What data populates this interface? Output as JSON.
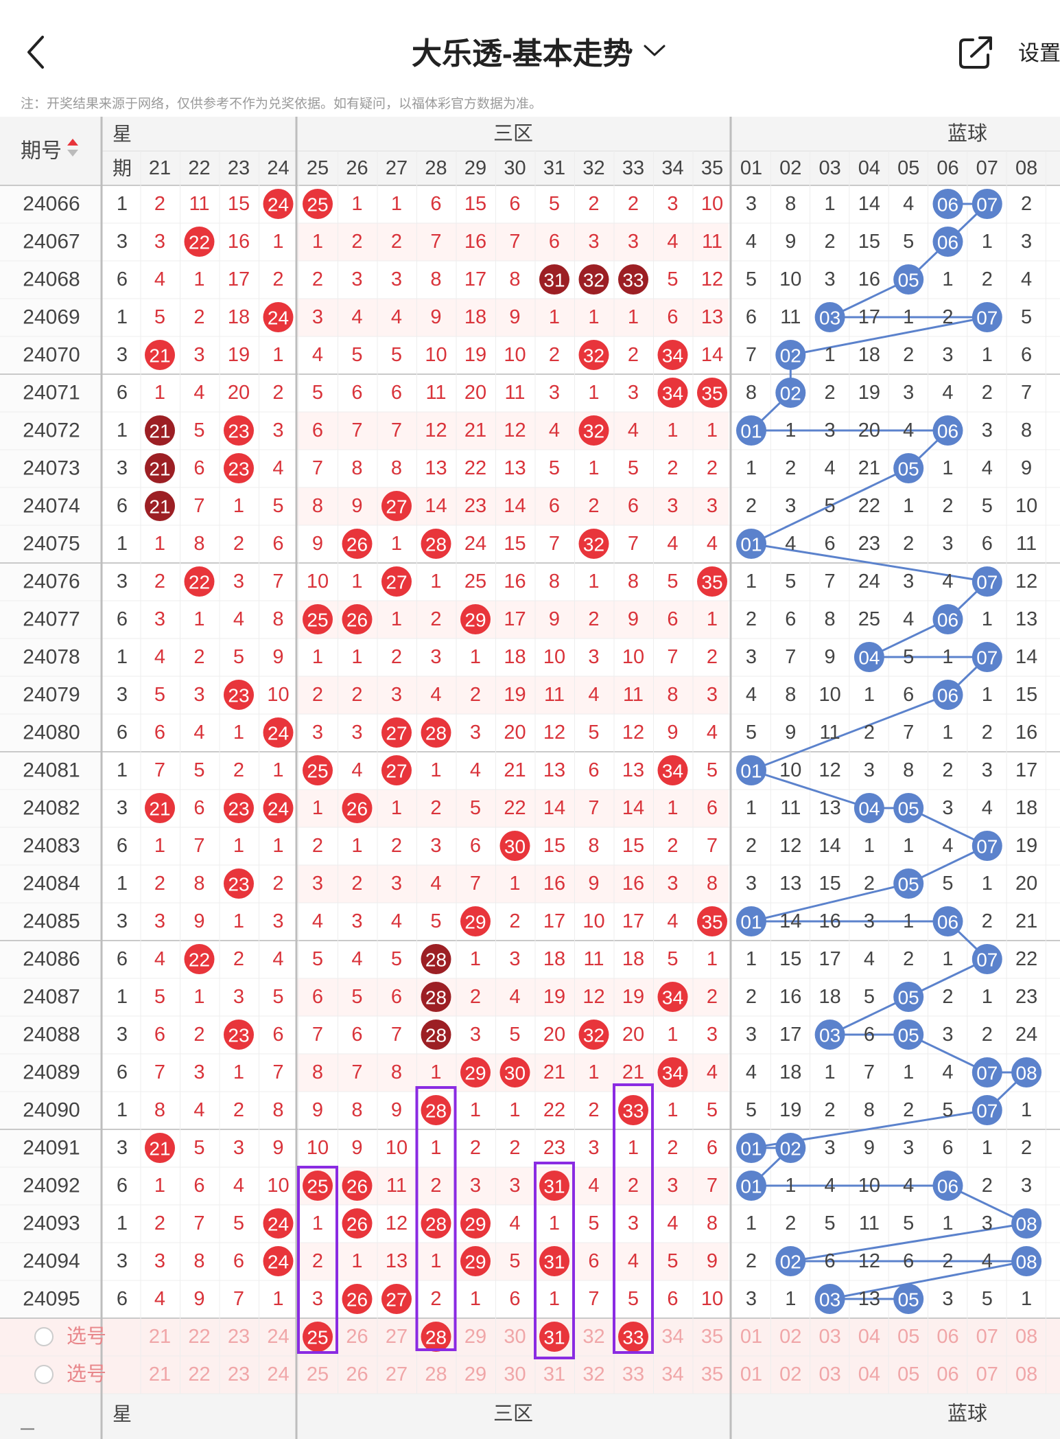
{
  "header": {
    "title": "大乐透-基本走势",
    "settings_label": "设置",
    "disclaimer": "注：开奖结果来源于网络，仅供参考不作为兑奖依据。如有疑问，以福体彩官方数据为准。"
  },
  "table": {
    "issue_header": "期号",
    "week_header_top": "星",
    "week_header_bottom": "期",
    "zone3_label": "三区",
    "blue_label": "蓝球",
    "zone3_columns": [
      "21",
      "22",
      "23",
      "24",
      "25",
      "26",
      "27",
      "28",
      "29",
      "30",
      "31",
      "32",
      "33",
      "34",
      "35"
    ],
    "blue_columns": [
      "01",
      "02",
      "03",
      "04",
      "05",
      "06",
      "07",
      "08"
    ],
    "select_label": "选号",
    "colors": {
      "red_ball": "#e8353b",
      "dark_red_ball": "#9c1f24",
      "blue_ball": "#5b82cc",
      "trend_line": "#5b82cc",
      "highlight_box": "#8a2be2",
      "red_text": "#d9333a",
      "gray_text": "#444444"
    },
    "rows": [
      {
        "issue": "24066",
        "week": "1",
        "red": [
          "2",
          "11",
          "15",
          "24",
          "25",
          "1",
          "1",
          "6",
          "15",
          "6",
          "5",
          "2",
          "2",
          "3",
          "10"
        ],
        "blue": [
          "3",
          "8",
          "1",
          "14",
          "4",
          "06",
          "07",
          "2"
        ]
      },
      {
        "issue": "24067",
        "week": "3",
        "red": [
          "3",
          "22",
          "16",
          "1",
          "1",
          "2",
          "2",
          "7",
          "16",
          "7",
          "6",
          "3",
          "3",
          "4",
          "11"
        ],
        "blue": [
          "4",
          "9",
          "2",
          "15",
          "5",
          "06",
          "1",
          "3"
        ]
      },
      {
        "issue": "24068",
        "week": "6",
        "red": [
          "4",
          "1",
          "17",
          "2",
          "2",
          "3",
          "3",
          "8",
          "17",
          "8",
          "31",
          "32",
          "33",
          "5",
          "12"
        ],
        "blue": [
          "5",
          "10",
          "3",
          "16",
          "05",
          "1",
          "2",
          "4"
        ]
      },
      {
        "issue": "24069",
        "week": "1",
        "red": [
          "5",
          "2",
          "18",
          "24",
          "3",
          "4",
          "4",
          "9",
          "18",
          "9",
          "1",
          "1",
          "1",
          "6",
          "13"
        ],
        "blue": [
          "6",
          "11",
          "03",
          "17",
          "1",
          "2",
          "07",
          "5"
        ]
      },
      {
        "issue": "24070",
        "week": "3",
        "red": [
          "21",
          "3",
          "19",
          "1",
          "4",
          "5",
          "5",
          "10",
          "19",
          "10",
          "2",
          "32",
          "2",
          "34",
          "14"
        ],
        "blue": [
          "7",
          "02",
          "1",
          "18",
          "2",
          "3",
          "1",
          "6"
        ]
      },
      {
        "issue": "24071",
        "week": "6",
        "red": [
          "1",
          "4",
          "20",
          "2",
          "5",
          "6",
          "6",
          "11",
          "20",
          "11",
          "3",
          "1",
          "3",
          "34",
          "35"
        ],
        "blue": [
          "8",
          "02",
          "2",
          "19",
          "3",
          "4",
          "2",
          "7"
        ]
      },
      {
        "issue": "24072",
        "week": "1",
        "red": [
          "21",
          "5",
          "23",
          "3",
          "6",
          "7",
          "7",
          "12",
          "21",
          "12",
          "4",
          "32",
          "4",
          "1",
          "1"
        ],
        "blue": [
          "01",
          "1",
          "3",
          "20",
          "4",
          "06",
          "3",
          "8"
        ]
      },
      {
        "issue": "24073",
        "week": "3",
        "red": [
          "21",
          "6",
          "23",
          "4",
          "7",
          "8",
          "8",
          "13",
          "22",
          "13",
          "5",
          "1",
          "5",
          "2",
          "2"
        ],
        "blue": [
          "1",
          "2",
          "4",
          "21",
          "05",
          "1",
          "4",
          "9"
        ]
      },
      {
        "issue": "24074",
        "week": "6",
        "red": [
          "21",
          "7",
          "1",
          "5",
          "8",
          "9",
          "27",
          "14",
          "23",
          "14",
          "6",
          "2",
          "6",
          "3",
          "3"
        ],
        "blue": [
          "2",
          "3",
          "5",
          "22",
          "1",
          "2",
          "5",
          "10"
        ]
      },
      {
        "issue": "24075",
        "week": "1",
        "red": [
          "1",
          "8",
          "2",
          "6",
          "9",
          "26",
          "1",
          "28",
          "24",
          "15",
          "7",
          "32",
          "7",
          "4",
          "4"
        ],
        "blue": [
          "01",
          "4",
          "6",
          "23",
          "2",
          "3",
          "6",
          "11"
        ]
      },
      {
        "issue": "24076",
        "week": "3",
        "red": [
          "2",
          "22",
          "3",
          "7",
          "10",
          "1",
          "27",
          "1",
          "25",
          "16",
          "8",
          "1",
          "8",
          "5",
          "35"
        ],
        "blue": [
          "1",
          "5",
          "7",
          "24",
          "3",
          "4",
          "07",
          "12"
        ]
      },
      {
        "issue": "24077",
        "week": "6",
        "red": [
          "3",
          "1",
          "4",
          "8",
          "25",
          "26",
          "1",
          "2",
          "29",
          "17",
          "9",
          "2",
          "9",
          "6",
          "1"
        ],
        "blue": [
          "2",
          "6",
          "8",
          "25",
          "4",
          "06",
          "1",
          "13"
        ]
      },
      {
        "issue": "24078",
        "week": "1",
        "red": [
          "4",
          "2",
          "5",
          "9",
          "1",
          "1",
          "2",
          "3",
          "1",
          "18",
          "10",
          "3",
          "10",
          "7",
          "2"
        ],
        "blue": [
          "3",
          "7",
          "9",
          "04",
          "5",
          "1",
          "07",
          "14"
        ]
      },
      {
        "issue": "24079",
        "week": "3",
        "red": [
          "5",
          "3",
          "23",
          "10",
          "2",
          "2",
          "3",
          "4",
          "2",
          "19",
          "11",
          "4",
          "11",
          "8",
          "3"
        ],
        "blue": [
          "4",
          "8",
          "10",
          "1",
          "6",
          "06",
          "1",
          "15"
        ]
      },
      {
        "issue": "24080",
        "week": "6",
        "red": [
          "6",
          "4",
          "1",
          "24",
          "3",
          "3",
          "27",
          "28",
          "3",
          "20",
          "12",
          "5",
          "12",
          "9",
          "4"
        ],
        "blue": [
          "5",
          "9",
          "11",
          "2",
          "7",
          "1",
          "2",
          "16"
        ]
      },
      {
        "issue": "24081",
        "week": "1",
        "red": [
          "7",
          "5",
          "2",
          "1",
          "25",
          "4",
          "27",
          "1",
          "4",
          "21",
          "13",
          "6",
          "13",
          "34",
          "5"
        ],
        "blue": [
          "01",
          "10",
          "12",
          "3",
          "8",
          "2",
          "3",
          "17"
        ]
      },
      {
        "issue": "24082",
        "week": "3",
        "red": [
          "21",
          "6",
          "23",
          "24",
          "1",
          "26",
          "1",
          "2",
          "5",
          "22",
          "14",
          "7",
          "14",
          "1",
          "6"
        ],
        "blue": [
          "1",
          "11",
          "13",
          "04",
          "05",
          "3",
          "4",
          "18"
        ]
      },
      {
        "issue": "24083",
        "week": "6",
        "red": [
          "1",
          "7",
          "1",
          "1",
          "2",
          "1",
          "2",
          "3",
          "6",
          "30",
          "15",
          "8",
          "15",
          "2",
          "7"
        ],
        "blue": [
          "2",
          "12",
          "14",
          "1",
          "1",
          "4",
          "07",
          "19"
        ]
      },
      {
        "issue": "24084",
        "week": "1",
        "red": [
          "2",
          "8",
          "23",
          "2",
          "3",
          "2",
          "3",
          "4",
          "7",
          "1",
          "16",
          "9",
          "16",
          "3",
          "8"
        ],
        "blue": [
          "3",
          "13",
          "15",
          "2",
          "05",
          "5",
          "1",
          "20"
        ]
      },
      {
        "issue": "24085",
        "week": "3",
        "red": [
          "3",
          "9",
          "1",
          "3",
          "4",
          "3",
          "4",
          "5",
          "29",
          "2",
          "17",
          "10",
          "17",
          "4",
          "35"
        ],
        "blue": [
          "01",
          "14",
          "16",
          "3",
          "1",
          "06",
          "2",
          "21"
        ]
      },
      {
        "issue": "24086",
        "week": "6",
        "red": [
          "4",
          "22",
          "2",
          "4",
          "5",
          "4",
          "5",
          "28",
          "1",
          "3",
          "18",
          "11",
          "18",
          "5",
          "1"
        ],
        "blue": [
          "1",
          "15",
          "17",
          "4",
          "2",
          "1",
          "07",
          "22"
        ]
      },
      {
        "issue": "24087",
        "week": "1",
        "red": [
          "5",
          "1",
          "3",
          "5",
          "6",
          "5",
          "6",
          "28",
          "2",
          "4",
          "19",
          "12",
          "19",
          "34",
          "2"
        ],
        "blue": [
          "2",
          "16",
          "18",
          "5",
          "05",
          "2",
          "1",
          "23"
        ]
      },
      {
        "issue": "24088",
        "week": "3",
        "red": [
          "6",
          "2",
          "23",
          "6",
          "7",
          "6",
          "7",
          "28",
          "3",
          "5",
          "20",
          "32",
          "20",
          "1",
          "3"
        ],
        "blue": [
          "3",
          "17",
          "03",
          "6",
          "05",
          "3",
          "2",
          "24"
        ]
      },
      {
        "issue": "24089",
        "week": "6",
        "red": [
          "7",
          "3",
          "1",
          "7",
          "8",
          "7",
          "8",
          "1",
          "29",
          "30",
          "21",
          "1",
          "21",
          "34",
          "4"
        ],
        "blue": [
          "4",
          "18",
          "1",
          "7",
          "1",
          "4",
          "07",
          "08"
        ]
      },
      {
        "issue": "24090",
        "week": "1",
        "red": [
          "8",
          "4",
          "2",
          "8",
          "9",
          "8",
          "9",
          "28",
          "1",
          "1",
          "22",
          "2",
          "33",
          "1",
          "5"
        ],
        "blue": [
          "5",
          "19",
          "2",
          "8",
          "2",
          "5",
          "07",
          "1"
        ]
      },
      {
        "issue": "24091",
        "week": "3",
        "red": [
          "21",
          "5",
          "3",
          "9",
          "10",
          "9",
          "10",
          "1",
          "2",
          "2",
          "23",
          "3",
          "1",
          "2",
          "6"
        ],
        "blue": [
          "01",
          "02",
          "3",
          "9",
          "3",
          "6",
          "1",
          "2"
        ]
      },
      {
        "issue": "24092",
        "week": "6",
        "red": [
          "1",
          "6",
          "4",
          "10",
          "25",
          "26",
          "11",
          "2",
          "3",
          "3",
          "31",
          "4",
          "2",
          "3",
          "7"
        ],
        "blue": [
          "01",
          "1",
          "4",
          "10",
          "4",
          "06",
          "2",
          "3"
        ]
      },
      {
        "issue": "24093",
        "week": "1",
        "red": [
          "2",
          "7",
          "5",
          "24",
          "1",
          "26",
          "12",
          "28",
          "29",
          "4",
          "1",
          "5",
          "3",
          "4",
          "8"
        ],
        "blue": [
          "1",
          "2",
          "5",
          "11",
          "5",
          "1",
          "3",
          "08"
        ]
      },
      {
        "issue": "24094",
        "week": "3",
        "red": [
          "3",
          "8",
          "6",
          "24",
          "2",
          "1",
          "13",
          "1",
          "29",
          "5",
          "31",
          "6",
          "4",
          "5",
          "9"
        ],
        "blue": [
          "2",
          "02",
          "6",
          "12",
          "6",
          "2",
          "4",
          "08"
        ]
      },
      {
        "issue": "24095",
        "week": "6",
        "red": [
          "4",
          "9",
          "7",
          "1",
          "3",
          "26",
          "27",
          "2",
          "1",
          "6",
          "1",
          "7",
          "5",
          "6",
          "10"
        ],
        "blue": [
          "3",
          "1",
          "03",
          "13",
          "05",
          "3",
          "5",
          "1"
        ]
      }
    ]
  }
}
